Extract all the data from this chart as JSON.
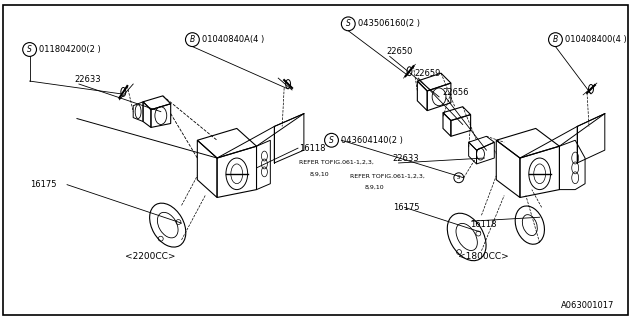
{
  "bg_color": "#ffffff",
  "line_color": "#000000",
  "diagram_id": "A063001017",
  "left_label": "<2200CC>",
  "right_label": "<1800CC>",
  "fs_label": 6.0,
  "fs_partno": 5.5,
  "fs_diagramid": 6.0
}
